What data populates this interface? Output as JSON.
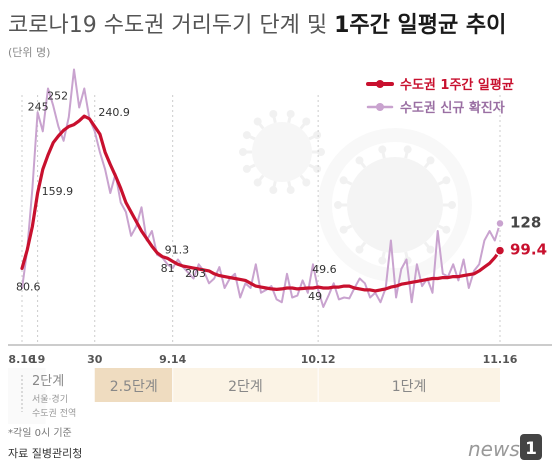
{
  "title": {
    "part1": "코로나19 수도권 거리두기 단계 및 ",
    "part2": "1주간 일평균 추이",
    "unit": "(단위 명)"
  },
  "legend": {
    "avg": "수도권 1주간 일평균",
    "daily": "수도권 신규 확진자"
  },
  "colors": {
    "avg": "#c8102e",
    "daily": "#c9a3cf",
    "stage_light": "#fbf3e5",
    "stage_dark": "#efdcc0"
  },
  "chart_data": {
    "type": "line",
    "x_start": "2020-08-16",
    "x_end": "2020-11-16",
    "series": [
      {
        "name": "수도권 1주간 일평균",
        "role": "avg",
        "values": [
          80.6,
          100,
          125,
          159.9,
          185,
          200,
          213,
          220,
          226,
          230,
          232,
          236,
          240.9,
          238,
          230,
          222,
          203,
          190,
          178,
          165,
          150,
          140,
          130,
          120,
          112,
          104,
          97,
          93,
          91.3,
          88,
          85,
          83,
          82,
          81,
          80,
          79,
          78,
          75,
          73,
          72,
          71,
          70,
          69,
          68,
          65,
          62,
          61,
          60,
          59,
          58.5,
          59,
          60,
          60,
          59,
          59.5,
          60,
          60,
          61,
          60,
          60,
          61,
          61,
          62,
          62,
          60,
          59,
          58,
          58,
          57,
          58,
          59,
          61,
          62,
          64,
          65,
          66,
          67,
          68,
          69,
          70,
          70,
          71,
          71,
          72,
          72,
          73,
          74,
          75,
          78,
          82,
          86,
          92,
          99.4
        ]
      },
      {
        "name": "수도권 신규 확진자",
        "role": "daily",
        "values": [
          59,
          100,
          165,
          245,
          225,
          270,
          252,
          230,
          215,
          240,
          290,
          250,
          270,
          238,
          225,
          203,
          185,
          160,
          180,
          150,
          140,
          115,
          125,
          145,
          110,
          120,
          95,
          92,
          85,
          81,
          90,
          82,
          76,
          70,
          85,
          78,
          65,
          70,
          82,
          60,
          70,
          75,
          50,
          65,
          60,
          85,
          55,
          58,
          62,
          48,
          45,
          75,
          50,
          52,
          68,
          55,
          85,
          58,
          40,
          52,
          65,
          48,
          50,
          49,
          60,
          70,
          65,
          50,
          55,
          45,
          60,
          110,
          50,
          80,
          90,
          45,
          85,
          62,
          70,
          55,
          120,
          75,
          72,
          85,
          68,
          90,
          60,
          78,
          85,
          110,
          120,
          110,
          128
        ]
      }
    ],
    "point_labels": [
      {
        "series": "daily",
        "index": 3,
        "text": "245"
      },
      {
        "series": "daily",
        "index": 6,
        "text": "252"
      },
      {
        "series": "avg",
        "index": 12,
        "text": "240.9"
      },
      {
        "series": "daily",
        "index": 31,
        "text": "203"
      },
      {
        "series": "avg",
        "index": 3,
        "text": "159.9"
      },
      {
        "series": "avg",
        "index": 0,
        "text": "80.6"
      },
      {
        "series": "avg",
        "index": 29,
        "text": "91.3"
      },
      {
        "series": "daily",
        "index": 29,
        "text": "81"
      },
      {
        "series": "avg",
        "index": 57,
        "text": "49.6"
      },
      {
        "series": "daily",
        "index": 57,
        "text": "49"
      },
      {
        "series": "daily",
        "index": 92,
        "text": "128"
      },
      {
        "series": "avg",
        "index": 92,
        "text": "99.4"
      }
    ],
    "x_ticks": [
      {
        "index": 0,
        "label": "8.16"
      },
      {
        "index": 3,
        "label": "19"
      },
      {
        "index": 14,
        "label": "30"
      },
      {
        "index": 29,
        "label": "9.14"
      },
      {
        "index": 57,
        "label": "10.12"
      },
      {
        "index": 92,
        "label": "11.16"
      }
    ],
    "stages": [
      {
        "from": 0,
        "to": 3,
        "label": "2단계",
        "sub1": "서울·경기",
        "sub2": "수도권 전역"
      },
      {
        "from": 14,
        "to": 29,
        "label": "2.5단계"
      },
      {
        "from": 29,
        "to": 57,
        "label": "2단계"
      },
      {
        "from": 57,
        "to": 92,
        "label": "1단계"
      }
    ],
    "ylim": [
      0,
      300
    ]
  },
  "footer": {
    "note": "*각일 0시 기준",
    "source": "자료 질병관리청",
    "brand_word": "news",
    "brand_num": "1"
  }
}
